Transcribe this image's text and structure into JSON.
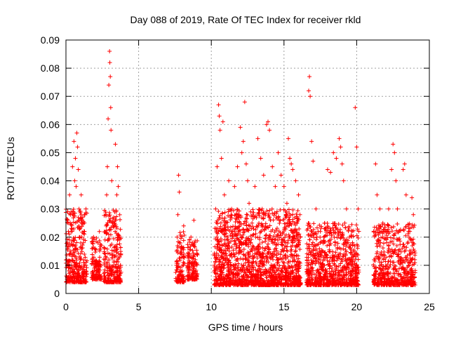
{
  "chart_data": {
    "type": "scatter",
    "title": "Day 088 of 2019, Rate Of TEC Index for receiver rkld",
    "xlabel": "GPS time / hours",
    "ylabel": "ROTI / TECUs",
    "xlim": [
      0,
      25
    ],
    "ylim": [
      0,
      0.09
    ],
    "xticks": [
      0,
      5,
      10,
      15,
      20,
      25
    ],
    "yticks": [
      0,
      0.01,
      0.02,
      0.03,
      0.04,
      0.05,
      0.06,
      0.07,
      0.08,
      0.09
    ],
    "xtick_labels": [
      "0",
      "5",
      "10",
      "15",
      "20",
      "25"
    ],
    "ytick_labels": [
      "0",
      "0.01",
      "0.02",
      "0.03",
      "0.04",
      "0.05",
      "0.06",
      "0.07",
      "0.08",
      "0.09"
    ],
    "grid": true,
    "marker": "+",
    "color": "#ff0000",
    "series": [
      {
        "name": "ROTI",
        "points": [
          [
            0.05,
            0.012
          ],
          [
            0.1,
            0.018
          ],
          [
            0.15,
            0.025
          ],
          [
            0.2,
            0.008
          ],
          [
            0.25,
            0.035
          ],
          [
            0.3,
            0.015
          ],
          [
            0.35,
            0.022
          ],
          [
            0.4,
            0.01
          ],
          [
            0.45,
            0.045
          ],
          [
            0.5,
            0.028
          ],
          [
            0.55,
            0.054
          ],
          [
            0.6,
            0.04
          ],
          [
            0.65,
            0.048
          ],
          [
            0.7,
            0.038
          ],
          [
            0.75,
            0.057
          ],
          [
            0.8,
            0.052
          ],
          [
            0.85,
            0.044
          ],
          [
            0.9,
            0.03
          ],
          [
            0.95,
            0.02
          ],
          [
            1.0,
            0.012
          ],
          [
            1.05,
            0.035
          ],
          [
            1.1,
            0.026
          ],
          [
            1.2,
            0.018
          ],
          [
            1.3,
            0.028
          ],
          [
            1.35,
            0.01
          ],
          [
            1.4,
            0.006
          ],
          [
            1.8,
            0.012
          ],
          [
            1.9,
            0.02
          ],
          [
            2.0,
            0.016
          ],
          [
            2.1,
            0.008
          ],
          [
            2.2,
            0.018
          ],
          [
            2.3,
            0.022
          ],
          [
            2.4,
            0.01
          ],
          [
            2.7,
            0.012
          ],
          [
            2.75,
            0.028
          ],
          [
            2.8,
            0.035
          ],
          [
            2.85,
            0.045
          ],
          [
            2.9,
            0.062
          ],
          [
            2.95,
            0.074
          ],
          [
            3.0,
            0.086
          ],
          [
            3.02,
            0.082
          ],
          [
            3.05,
            0.077
          ],
          [
            3.08,
            0.066
          ],
          [
            3.1,
            0.058
          ],
          [
            3.15,
            0.04
          ],
          [
            3.2,
            0.025
          ],
          [
            3.3,
            0.015
          ],
          [
            3.4,
            0.053
          ],
          [
            3.5,
            0.035
          ],
          [
            3.55,
            0.045
          ],
          [
            3.6,
            0.038
          ],
          [
            3.7,
            0.02
          ],
          [
            3.75,
            0.01
          ],
          [
            7.6,
            0.01
          ],
          [
            7.65,
            0.02
          ],
          [
            7.7,
            0.028
          ],
          [
            7.75,
            0.042
          ],
          [
            7.8,
            0.036
          ],
          [
            7.9,
            0.015
          ],
          [
            8.0,
            0.008
          ],
          [
            8.1,
            0.024
          ],
          [
            8.4,
            0.008
          ],
          [
            8.5,
            0.014
          ],
          [
            8.6,
            0.02
          ],
          [
            8.7,
            0.018
          ],
          [
            8.8,
            0.026
          ],
          [
            8.9,
            0.012
          ],
          [
            9.0,
            0.01
          ],
          [
            10.2,
            0.01
          ],
          [
            10.3,
            0.03
          ],
          [
            10.4,
            0.045
          ],
          [
            10.5,
            0.067
          ],
          [
            10.55,
            0.063
          ],
          [
            10.6,
            0.058
          ],
          [
            10.7,
            0.048
          ],
          [
            10.8,
            0.061
          ],
          [
            10.9,
            0.035
          ],
          [
            11.0,
            0.025
          ],
          [
            11.2,
            0.04
          ],
          [
            11.4,
            0.03
          ],
          [
            11.6,
            0.038
          ],
          [
            11.8,
            0.045
          ],
          [
            12.0,
            0.059
          ],
          [
            12.1,
            0.05
          ],
          [
            12.2,
            0.054
          ],
          [
            12.3,
            0.068
          ],
          [
            12.4,
            0.046
          ],
          [
            12.5,
            0.04
          ],
          [
            12.6,
            0.032
          ],
          [
            12.8,
            0.025
          ],
          [
            13.0,
            0.038
          ],
          [
            13.2,
            0.055
          ],
          [
            13.4,
            0.048
          ],
          [
            13.5,
            0.03
          ],
          [
            13.6,
            0.042
          ],
          [
            13.8,
            0.06
          ],
          [
            13.9,
            0.061
          ],
          [
            14.0,
            0.058
          ],
          [
            14.2,
            0.045
          ],
          [
            14.4,
            0.038
          ],
          [
            14.6,
            0.05
          ],
          [
            14.8,
            0.042
          ],
          [
            15.0,
            0.038
          ],
          [
            15.2,
            0.032
          ],
          [
            15.3,
            0.055
          ],
          [
            15.4,
            0.048
          ],
          [
            15.5,
            0.046
          ],
          [
            15.6,
            0.044
          ],
          [
            15.8,
            0.04
          ],
          [
            16.0,
            0.035
          ],
          [
            16.1,
            0.028
          ],
          [
            16.6,
            0.01
          ],
          [
            16.7,
            0.072
          ],
          [
            16.75,
            0.077
          ],
          [
            16.8,
            0.07
          ],
          [
            16.9,
            0.054
          ],
          [
            17.0,
            0.047
          ],
          [
            17.2,
            0.03
          ],
          [
            17.5,
            0.022
          ],
          [
            17.8,
            0.025
          ],
          [
            18.0,
            0.044
          ],
          [
            18.2,
            0.043
          ],
          [
            18.4,
            0.05
          ],
          [
            18.6,
            0.048
          ],
          [
            18.8,
            0.055
          ],
          [
            18.9,
            0.052
          ],
          [
            19.0,
            0.046
          ],
          [
            19.1,
            0.04
          ],
          [
            19.3,
            0.03
          ],
          [
            19.5,
            0.02
          ],
          [
            19.9,
            0.066
          ],
          [
            20.0,
            0.052
          ],
          [
            20.1,
            0.03
          ],
          [
            21.2,
            0.012
          ],
          [
            21.3,
            0.046
          ],
          [
            21.4,
            0.035
          ],
          [
            21.6,
            0.03
          ],
          [
            21.8,
            0.025
          ],
          [
            22.0,
            0.022
          ],
          [
            22.2,
            0.03
          ],
          [
            22.4,
            0.044
          ],
          [
            22.5,
            0.053
          ],
          [
            22.6,
            0.05
          ],
          [
            22.7,
            0.04
          ],
          [
            22.8,
            0.03
          ],
          [
            23.0,
            0.012
          ],
          [
            23.2,
            0.044
          ],
          [
            23.3,
            0.046
          ],
          [
            23.4,
            0.035
          ],
          [
            23.6,
            0.02
          ],
          [
            23.8,
            0.034
          ],
          [
            23.9,
            0.028
          ],
          [
            24.0,
            0.012
          ]
        ]
      }
    ],
    "clusters": [
      {
        "start": 0.0,
        "end": 1.45,
        "base": 0.004,
        "top": 0.03,
        "count": 320
      },
      {
        "start": 1.75,
        "end": 2.45,
        "base": 0.005,
        "top": 0.02,
        "count": 120
      },
      {
        "start": 2.6,
        "end": 3.8,
        "base": 0.004,
        "top": 0.03,
        "count": 260
      },
      {
        "start": 7.55,
        "end": 8.15,
        "base": 0.004,
        "top": 0.022,
        "count": 110
      },
      {
        "start": 8.35,
        "end": 9.05,
        "base": 0.005,
        "top": 0.02,
        "count": 130
      },
      {
        "start": 10.2,
        "end": 16.15,
        "base": 0.003,
        "top": 0.03,
        "count": 1500
      },
      {
        "start": 16.55,
        "end": 20.15,
        "base": 0.003,
        "top": 0.025,
        "count": 800
      },
      {
        "start": 21.15,
        "end": 24.05,
        "base": 0.003,
        "top": 0.025,
        "count": 550
      }
    ]
  }
}
